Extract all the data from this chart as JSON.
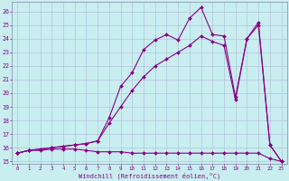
{
  "xlabel": "Windchill (Refroidissement éolien,°C)",
  "background_color": "#c8eef0",
  "grid_color": "#b0b8d8",
  "line_color": "#880088",
  "xlim": [
    -0.5,
    23.5
  ],
  "ylim": [
    14.8,
    26.7
  ],
  "yticks": [
    15,
    16,
    17,
    18,
    19,
    20,
    21,
    22,
    23,
    24,
    25,
    26
  ],
  "xticks": [
    0,
    1,
    2,
    3,
    4,
    5,
    6,
    7,
    8,
    9,
    10,
    11,
    12,
    13,
    14,
    15,
    16,
    17,
    18,
    19,
    20,
    21,
    22,
    23
  ],
  "series_flat_x": [
    0,
    1,
    2,
    3,
    4,
    5,
    6,
    7,
    8,
    9,
    10,
    11,
    12,
    13,
    14,
    15,
    16,
    17,
    18,
    19,
    20,
    21,
    22,
    23
  ],
  "series_flat_y": [
    15.6,
    15.8,
    15.8,
    15.9,
    15.9,
    15.9,
    15.8,
    15.7,
    15.7,
    15.7,
    15.6,
    15.6,
    15.6,
    15.6,
    15.6,
    15.6,
    15.6,
    15.6,
    15.6,
    15.6,
    15.6,
    15.6,
    15.2,
    15.0
  ],
  "series_mid_x": [
    0,
    1,
    2,
    3,
    4,
    5,
    6,
    7,
    8,
    9,
    10,
    11,
    12,
    13,
    14,
    15,
    16,
    17,
    18,
    19,
    20,
    21,
    22,
    23
  ],
  "series_mid_y": [
    15.6,
    15.8,
    15.9,
    16.0,
    16.1,
    16.2,
    16.3,
    16.5,
    17.8,
    19.0,
    20.2,
    21.2,
    22.0,
    22.5,
    23.0,
    23.5,
    24.2,
    23.8,
    23.5,
    19.5,
    24.0,
    25.0,
    16.2,
    15.0
  ],
  "series_top_x": [
    0,
    1,
    2,
    3,
    4,
    5,
    6,
    7,
    8,
    9,
    10,
    11,
    12,
    13,
    14,
    15,
    16,
    17,
    18,
    19,
    20,
    21,
    22,
    23
  ],
  "series_top_y": [
    15.6,
    15.8,
    15.9,
    16.0,
    16.1,
    16.2,
    16.3,
    16.5,
    18.2,
    20.5,
    21.5,
    23.2,
    23.9,
    24.3,
    23.9,
    25.5,
    26.3,
    24.3,
    24.2,
    19.7,
    24.0,
    25.2,
    16.2,
    15.0
  ]
}
